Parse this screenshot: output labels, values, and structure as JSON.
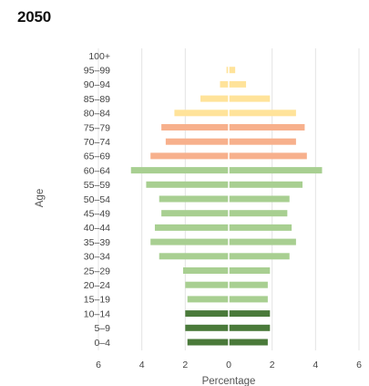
{
  "chart_data": {
    "type": "bar",
    "orientation": "horizontal-pyramid",
    "title": "2050",
    "xlabel": "Percentage",
    "ylabel": "Age",
    "xlim": [
      -6,
      6
    ],
    "x_ticks": [
      -6,
      -4,
      -2,
      0,
      2,
      4,
      6
    ],
    "x_tick_labels": [
      "6",
      "4",
      "2",
      "0",
      "2",
      "4",
      "6"
    ],
    "grid": "vertical",
    "categories": [
      "100+",
      "95–99",
      "90–94",
      "85–89",
      "80–84",
      "75–79",
      "70–74",
      "65–69",
      "60–64",
      "55–59",
      "50–54",
      "45–49",
      "40–44",
      "35–39",
      "30–34",
      "25–29",
      "20–24",
      "15–19",
      "10–14",
      "5–9",
      "0–4"
    ],
    "series": [
      {
        "side": "left",
        "values": [
          0.0,
          0.1,
          0.4,
          1.3,
          2.5,
          3.1,
          2.9,
          3.6,
          4.5,
          3.8,
          3.2,
          3.1,
          3.4,
          3.6,
          3.2,
          2.1,
          2.0,
          1.9,
          2.0,
          2.0,
          1.9
        ]
      },
      {
        "side": "right",
        "values": [
          0.0,
          0.3,
          0.8,
          1.9,
          3.1,
          3.5,
          3.1,
          3.6,
          4.3,
          3.4,
          2.8,
          2.7,
          2.9,
          3.1,
          2.8,
          1.9,
          1.8,
          1.8,
          1.9,
          1.9,
          1.8
        ]
      }
    ],
    "colors": {
      "bands": [
        "#ffe39a",
        "#ffe39a",
        "#ffe39a",
        "#ffe39a",
        "#ffe39a",
        "#f7b08c",
        "#f7b08c",
        "#f7b08c",
        "#a8cf91",
        "#a8cf91",
        "#a8cf91",
        "#a8cf91",
        "#a8cf91",
        "#a8cf91",
        "#a8cf91",
        "#a8cf91",
        "#a8cf91",
        "#a8cf91",
        "#4a7a3a",
        "#4a7a3a",
        "#4a7a3a"
      ],
      "grid": "#e4e4e4",
      "center": "#ffffff"
    }
  }
}
